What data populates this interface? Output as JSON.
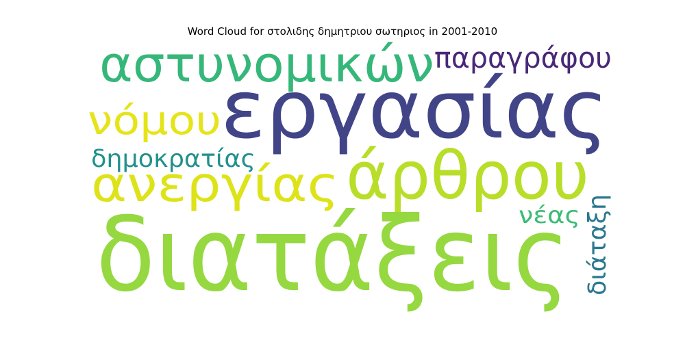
{
  "chart_data": {
    "type": "wordcloud",
    "title": "Word Cloud for στολιδης δημητριου σωτηριος in 2001-2010",
    "words": [
      {
        "text": "διατάξεις",
        "color": "#95d840"
      },
      {
        "text": "εργασίας",
        "color": "#414487"
      },
      {
        "text": "άρθρου",
        "color": "#b8de29"
      },
      {
        "text": "ανεργίας",
        "color": "#dde318"
      },
      {
        "text": "αστυνομικών",
        "color": "#35b779"
      },
      {
        "text": "νόμου",
        "color": "#e5e419"
      },
      {
        "text": "παραγράφου",
        "color": "#482878"
      },
      {
        "text": "δημοκρατίας",
        "color": "#21918c"
      },
      {
        "text": "νέας",
        "color": "#3cbb75"
      },
      {
        "text": "διάταξη",
        "color": "#2a788e"
      }
    ]
  }
}
